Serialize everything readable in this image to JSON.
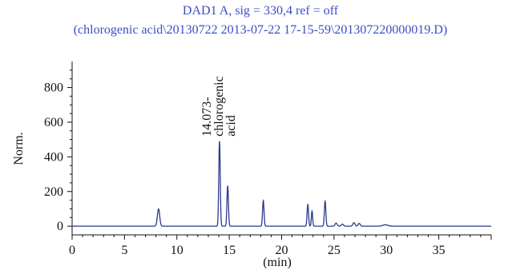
{
  "chart_data": {
    "type": "line",
    "title": "DAD1 A, sig = 330,4 ref = off",
    "subtitle": "(chlorogenic acid\\20130722 2013-07-22 17-15-59\\201307220000019.D)",
    "xlabel": "(min)",
    "ylabel": "Norm.",
    "xlim": [
      0,
      40
    ],
    "ylim": [
      -50,
      950
    ],
    "x_ticks": [
      0,
      5,
      10,
      15,
      20,
      25,
      30,
      35
    ],
    "x_tick_labels": [
      "0",
      "5",
      "10",
      "15",
      "20",
      "25",
      "30",
      "35"
    ],
    "y_ticks": [
      0,
      200,
      400,
      600,
      800
    ],
    "y_tick_labels": [
      "0",
      "200",
      "400",
      "600",
      "800"
    ],
    "grid": false,
    "colors": {
      "title": "#3a4fc4",
      "line": "#2a3a8c",
      "axis": "#111111"
    },
    "annotation": {
      "x": 14.07,
      "lines": [
        "14.073-",
        "chlorogenic",
        "acid"
      ]
    },
    "baseline": 0,
    "peaks": [
      {
        "x": 8.25,
        "y": 100,
        "w": 0.11
      },
      {
        "x": 14.07,
        "y": 490,
        "w": 0.07
      },
      {
        "x": 14.85,
        "y": 233,
        "w": 0.07
      },
      {
        "x": 18.25,
        "y": 148,
        "w": 0.07
      },
      {
        "x": 22.5,
        "y": 125,
        "w": 0.07
      },
      {
        "x": 22.9,
        "y": 88,
        "w": 0.06
      },
      {
        "x": 24.15,
        "y": 145,
        "w": 0.07
      },
      {
        "x": 25.2,
        "y": 18,
        "w": 0.1
      },
      {
        "x": 25.8,
        "y": 12,
        "w": 0.1
      },
      {
        "x": 26.9,
        "y": 20,
        "w": 0.1
      },
      {
        "x": 27.4,
        "y": 16,
        "w": 0.1
      },
      {
        "x": 29.9,
        "y": 8,
        "w": 0.25
      }
    ]
  }
}
